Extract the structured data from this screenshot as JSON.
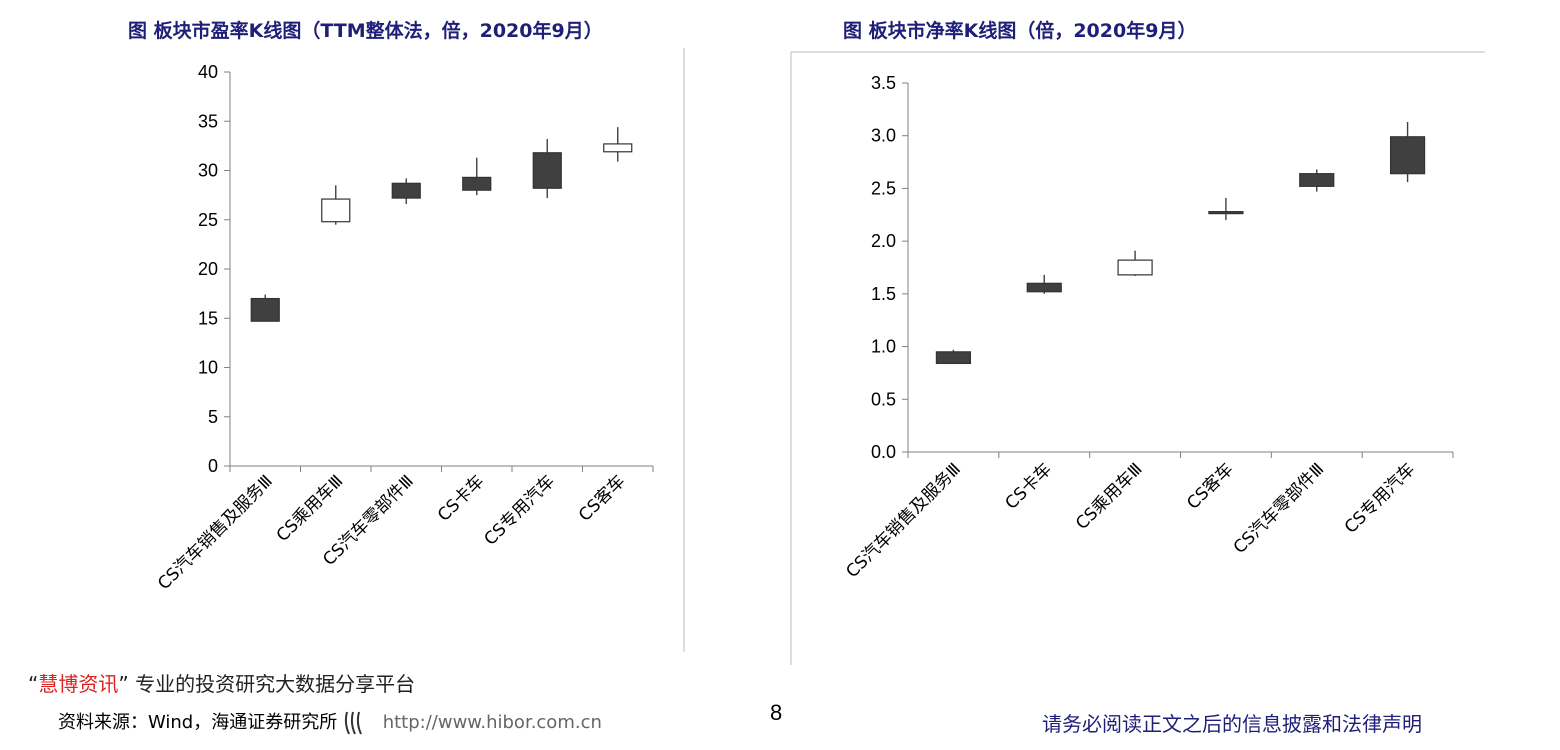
{
  "chart_data": [
    {
      "type": "candlestick",
      "title": "图 板块市盈率K线图（TTM整体法，倍，2020年9月）",
      "ylim": [
        0,
        40
      ],
      "yticks": [
        "0",
        "5",
        "10",
        "15",
        "20",
        "25",
        "30",
        "35",
        "40"
      ],
      "categories": [
        "CS汽车销售及服务Ⅲ",
        "CS乘用车Ⅲ",
        "CS汽车零部件Ⅲ",
        "CS卡车",
        "CS专用汽车",
        "CS客车"
      ],
      "series": [
        {
          "open": [
            17.0,
            24.8,
            28.7,
            29.3,
            31.8,
            31.9
          ],
          "close": [
            14.7,
            27.1,
            27.2,
            28.0,
            28.2,
            32.7
          ],
          "high": [
            17.4,
            28.5,
            29.2,
            31.3,
            33.2,
            34.4
          ],
          "low": [
            14.7,
            24.5,
            26.6,
            27.5,
            27.2,
            30.9
          ]
        }
      ],
      "colors": {
        "down": "#404040",
        "up": "#ffffff",
        "wick": "#404040"
      }
    },
    {
      "type": "candlestick",
      "title": "图 板块市净率K线图（倍，2020年9月）",
      "ylim": [
        0,
        3.5
      ],
      "yticks": [
        "0.0",
        "0.5",
        "1.0",
        "1.5",
        "2.0",
        "2.5",
        "3.0",
        "3.5"
      ],
      "categories": [
        "CS汽车销售及服务Ⅲ",
        "CS卡车",
        "CS乘用车Ⅲ",
        "CS客车",
        "CS汽车零部件Ⅲ",
        "CS专用汽车"
      ],
      "series": [
        {
          "open": [
            0.95,
            1.6,
            1.68,
            2.28,
            2.64,
            2.99
          ],
          "close": [
            0.84,
            1.52,
            1.82,
            2.27,
            2.52,
            2.64
          ],
          "high": [
            0.97,
            1.68,
            1.91,
            2.41,
            2.68,
            3.13
          ],
          "low": [
            0.84,
            1.5,
            1.67,
            2.2,
            2.47,
            2.56
          ]
        }
      ],
      "colors": {
        "down": "#404040",
        "up": "#ffffff",
        "wick": "#404040"
      }
    }
  ],
  "footer": {
    "quote_open": "“",
    "brand": "慧博资讯",
    "quote_close": "”",
    "tagline": "专业的投资研究大数据分享平台",
    "source": "资料来源：Wind，海通证券研究所",
    "url": "http://www.hibor.com.cn",
    "page_number": "8",
    "disclaimer": "请务必阅读正文之后的信息披露和法律声明"
  }
}
